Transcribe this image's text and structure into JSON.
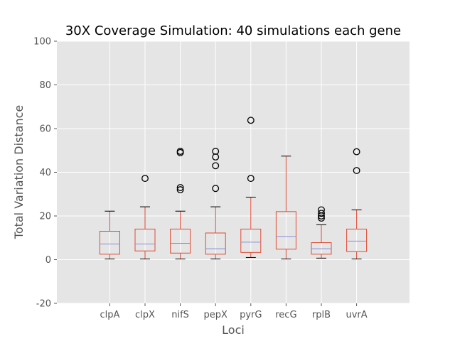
{
  "chart_data": {
    "type": "boxplot",
    "title": "30X Coverage Simulation: 40 simulations each gene",
    "xlabel": "Loci",
    "ylabel": "Total Variation Distance",
    "ylim": [
      -20,
      100
    ],
    "yticks": [
      -20,
      0,
      20,
      40,
      60,
      80,
      100
    ],
    "grid": true,
    "colors": {
      "background": "#e5e5e5",
      "grid": "#ffffff",
      "box": "#e24a33",
      "median": "#8a8ad8",
      "whisker": "#000000",
      "flier": "#000000",
      "tick_text": "#555555"
    },
    "categories": [
      "clpA",
      "clpX",
      "nifS",
      "pepX",
      "pyrG",
      "recG",
      "rplB",
      "uvrA"
    ],
    "boxes": [
      {
        "label": "clpA",
        "whislo": 0.3,
        "q1": 2.5,
        "med": 7.2,
        "q3": 13.0,
        "whishi": 22.2,
        "fliers": []
      },
      {
        "label": "clpX",
        "whislo": 0.3,
        "q1": 4.0,
        "med": 7.2,
        "q3": 14.0,
        "whishi": 24.2,
        "fliers": [
          37.2
        ]
      },
      {
        "label": "nifS",
        "whislo": 0.3,
        "q1": 3.0,
        "med": 7.5,
        "q3": 14.0,
        "whishi": 22.2,
        "fliers": [
          32.0,
          33.0,
          49.0,
          49.6
        ]
      },
      {
        "label": "pepX",
        "whislo": 0.3,
        "q1": 2.5,
        "med": 5.0,
        "q3": 12.2,
        "whishi": 24.2,
        "fliers": [
          32.6,
          43.0,
          47.0,
          49.6
        ]
      },
      {
        "label": "pyrG",
        "whislo": 1.0,
        "q1": 3.3,
        "med": 8.0,
        "q3": 14.0,
        "whishi": 28.6,
        "fliers": [
          37.2,
          63.8
        ]
      },
      {
        "label": "recG",
        "whislo": 0.3,
        "q1": 4.8,
        "med": 10.6,
        "q3": 22.0,
        "whishi": 47.4,
        "fliers": []
      },
      {
        "label": "rplB",
        "whislo": 0.7,
        "q1": 2.5,
        "med": 5.0,
        "q3": 7.8,
        "whishi": 16.0,
        "fliers": [
          19.0,
          20.0,
          21.2,
          22.8
        ]
      },
      {
        "label": "uvrA",
        "whislo": 0.3,
        "q1": 3.7,
        "med": 8.5,
        "q3": 14.0,
        "whishi": 22.8,
        "fliers": [
          40.8,
          49.4
        ]
      }
    ]
  }
}
